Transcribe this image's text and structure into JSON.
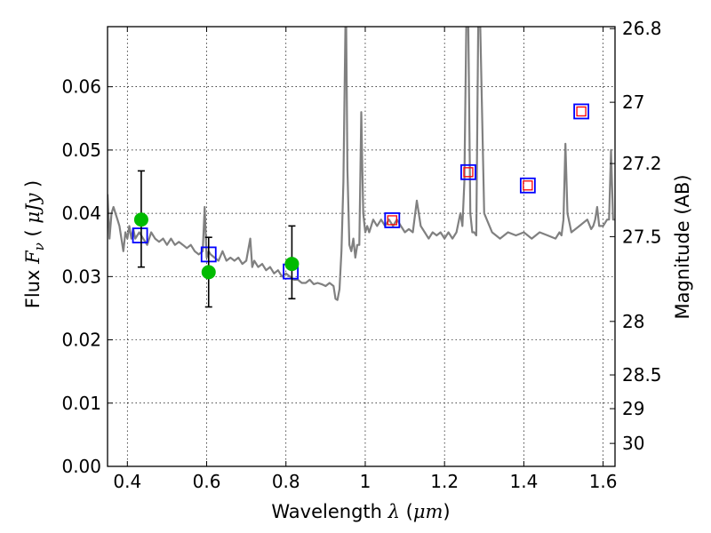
{
  "chart_data": {
    "type": "scatter",
    "title": "",
    "xlabel": {
      "prefix": "Wavelength  ",
      "symbol": "λ",
      "unit_open": " (",
      "unit": "μm",
      "unit_close": ")"
    },
    "ylabel": {
      "prefix": "Flux  ",
      "symbol": "F",
      "subscript": "ν",
      "unit_open": "  ( ",
      "unit": "μJy",
      "unit_close": " )"
    },
    "y2label": "Magnitude (AB)",
    "xlim": [
      0.35,
      1.63
    ],
    "ylim": [
      0.0,
      0.0695
    ],
    "grid": true,
    "x_ticks": [
      0.4,
      0.6,
      0.8,
      1.0,
      1.2,
      1.4,
      1.6
    ],
    "x_tick_labels": [
      "0.4",
      "0.6",
      "0.8",
      "1",
      "1.2",
      "1.4",
      "1.6"
    ],
    "y_ticks": [
      0.0,
      0.01,
      0.02,
      0.03,
      0.04,
      0.05,
      0.06
    ],
    "y_tick_labels": [
      "0.00",
      "0.01",
      "0.02",
      "0.03",
      "0.04",
      "0.05",
      "0.06"
    ],
    "y2_ticks": [
      26.8,
      27,
      27.2,
      27.5,
      28,
      28.5,
      29,
      30
    ],
    "y2_tick_labels": [
      "26.8",
      "27",
      "27.2",
      "27.5",
      "28",
      "28.5",
      "29",
      "30"
    ],
    "colors": {
      "template": "#808080",
      "observed": "#00bb00",
      "model_box": "#0000ff",
      "model_inner": "#ff0000",
      "errorbar": "#000000"
    },
    "series": [
      {
        "name": "template-spectrum",
        "kind": "line",
        "x": [
          0.35,
          0.355,
          0.36,
          0.365,
          0.37,
          0.375,
          0.38,
          0.385,
          0.39,
          0.395,
          0.4,
          0.405,
          0.41,
          0.415,
          0.42,
          0.425,
          0.43,
          0.44,
          0.45,
          0.46,
          0.47,
          0.48,
          0.49,
          0.5,
          0.51,
          0.52,
          0.53,
          0.54,
          0.55,
          0.56,
          0.57,
          0.58,
          0.59,
          0.595,
          0.6,
          0.605,
          0.61,
          0.62,
          0.63,
          0.64,
          0.65,
          0.66,
          0.67,
          0.68,
          0.69,
          0.7,
          0.71,
          0.715,
          0.72,
          0.73,
          0.74,
          0.75,
          0.76,
          0.77,
          0.78,
          0.79,
          0.8,
          0.81,
          0.82,
          0.83,
          0.84,
          0.85,
          0.86,
          0.87,
          0.88,
          0.89,
          0.9,
          0.91,
          0.92,
          0.925,
          0.93,
          0.935,
          0.94,
          0.945,
          0.95,
          0.952,
          0.955,
          0.96,
          0.965,
          0.97,
          0.975,
          0.98,
          0.985,
          0.99,
          0.995,
          1.0,
          1.005,
          1.01,
          1.015,
          1.02,
          1.03,
          1.04,
          1.05,
          1.06,
          1.07,
          1.08,
          1.09,
          1.1,
          1.11,
          1.12,
          1.13,
          1.14,
          1.15,
          1.16,
          1.17,
          1.18,
          1.19,
          1.2,
          1.21,
          1.22,
          1.23,
          1.24,
          1.245,
          1.25,
          1.255,
          1.26,
          1.265,
          1.27,
          1.275,
          1.28,
          1.285,
          1.29,
          1.3,
          1.32,
          1.34,
          1.36,
          1.38,
          1.4,
          1.42,
          1.44,
          1.46,
          1.48,
          1.49,
          1.495,
          1.5,
          1.505,
          1.51,
          1.52,
          1.54,
          1.56,
          1.57,
          1.575,
          1.58,
          1.585,
          1.59,
          1.6,
          1.61,
          1.615,
          1.62,
          1.625,
          1.63
        ],
        "y": [
          0.043,
          0.036,
          0.04,
          0.041,
          0.04,
          0.039,
          0.038,
          0.036,
          0.034,
          0.037,
          0.036,
          0.038,
          0.036,
          0.0375,
          0.036,
          0.0365,
          0.037,
          0.036,
          0.035,
          0.037,
          0.036,
          0.0355,
          0.036,
          0.035,
          0.036,
          0.035,
          0.0355,
          0.035,
          0.0345,
          0.035,
          0.034,
          0.0335,
          0.034,
          0.041,
          0.033,
          0.034,
          0.0335,
          0.033,
          0.0325,
          0.034,
          0.0325,
          0.033,
          0.0325,
          0.033,
          0.032,
          0.0325,
          0.036,
          0.0315,
          0.0325,
          0.0315,
          0.032,
          0.031,
          0.0315,
          0.0305,
          0.031,
          0.03,
          0.0305,
          0.03,
          0.0295,
          0.0295,
          0.029,
          0.029,
          0.0295,
          0.0288,
          0.029,
          0.0288,
          0.0285,
          0.029,
          0.0285,
          0.0265,
          0.0263,
          0.028,
          0.034,
          0.045,
          0.07,
          0.07,
          0.047,
          0.035,
          0.034,
          0.036,
          0.033,
          0.035,
          0.035,
          0.056,
          0.04,
          0.037,
          0.038,
          0.037,
          0.038,
          0.039,
          0.038,
          0.039,
          0.038,
          0.039,
          0.038,
          0.039,
          0.038,
          0.037,
          0.0375,
          0.037,
          0.042,
          0.038,
          0.037,
          0.036,
          0.037,
          0.0365,
          0.037,
          0.036,
          0.037,
          0.036,
          0.037,
          0.04,
          0.038,
          0.045,
          0.07,
          0.07,
          0.04,
          0.037,
          0.037,
          0.0365,
          0.07,
          0.07,
          0.04,
          0.037,
          0.036,
          0.037,
          0.0365,
          0.037,
          0.036,
          0.037,
          0.0365,
          0.036,
          0.037,
          0.0365,
          0.039,
          0.051,
          0.04,
          0.037,
          0.038,
          0.039,
          0.0375,
          0.038,
          0.039,
          0.041,
          0.038,
          0.038,
          0.039,
          0.039,
          0.05,
          0.039,
          0.039
        ]
      },
      {
        "name": "model-photometry",
        "kind": "box-markers",
        "x": [
          0.432,
          0.605,
          0.812,
          1.068,
          1.26,
          1.41,
          1.545
        ],
        "y": [
          0.0365,
          0.0335,
          0.0308,
          0.0389,
          0.0465,
          0.0444,
          0.0561
        ],
        "filled_inner": [
          false,
          false,
          false,
          true,
          true,
          true,
          true
        ]
      },
      {
        "name": "observed-photometry",
        "kind": "points-with-errors",
        "x": [
          0.435,
          0.605,
          0.815
        ],
        "y": [
          0.039,
          0.0307,
          0.032
        ],
        "yerr_low": [
          0.0075,
          0.0055,
          0.0055
        ],
        "yerr_high": [
          0.0077,
          0.0055,
          0.006
        ]
      }
    ]
  }
}
